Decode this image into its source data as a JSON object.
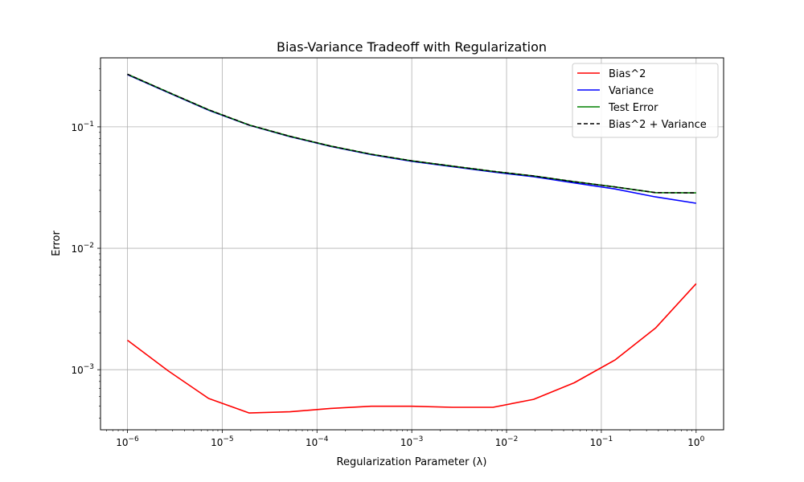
{
  "chart_data": {
    "type": "line",
    "title": "Bias-Variance Tradeoff with Regularization",
    "xlabel": "Regularization Parameter (λ)",
    "ylabel": "Error",
    "xscale": "log",
    "yscale": "log",
    "xlim": [
      5.2e-07,
      1.95
    ],
    "ylim": [
      0.00032,
      0.37
    ],
    "grid": true,
    "legend_position": "top-right",
    "x": [
      1e-06,
      2.68e-06,
      7.2e-06,
      1.93e-05,
      5.18e-05,
      0.000139,
      0.000373,
      0.001,
      0.00268,
      0.0072,
      0.0193,
      0.0518,
      0.139,
      0.373,
      1
    ],
    "series": [
      {
        "name": "Bias^2",
        "color": "#ff0000",
        "dash": "solid",
        "values": [
          0.00175,
          0.00098,
          0.00058,
          0.00044,
          0.00045,
          0.00048,
          0.0005,
          0.0005,
          0.00049,
          0.00049,
          0.00057,
          0.00078,
          0.0012,
          0.0022,
          0.0051
        ]
      },
      {
        "name": "Variance",
        "color": "#0000ff",
        "dash": "solid",
        "values": [
          0.269,
          0.192,
          0.137,
          0.103,
          0.083,
          0.069,
          0.059,
          0.052,
          0.047,
          0.0425,
          0.0388,
          0.0345,
          0.0308,
          0.0265,
          0.0235
        ]
      },
      {
        "name": "Test Error",
        "color": "#008000",
        "dash": "solid",
        "values": [
          0.271,
          0.193,
          0.138,
          0.1035,
          0.0835,
          0.0695,
          0.0595,
          0.0525,
          0.0475,
          0.043,
          0.0394,
          0.0353,
          0.032,
          0.0287,
          0.0286
        ]
      },
      {
        "name": "Bias^2 + Variance",
        "color": "#000000",
        "dash": "dashed",
        "values": [
          0.271,
          0.193,
          0.138,
          0.1035,
          0.0835,
          0.0695,
          0.0595,
          0.0525,
          0.0475,
          0.043,
          0.0394,
          0.0353,
          0.032,
          0.0287,
          0.0286
        ]
      }
    ],
    "x_ticks": [
      {
        "base": "10",
        "exp": "−6",
        "value": 1e-06
      },
      {
        "base": "10",
        "exp": "−5",
        "value": 1e-05
      },
      {
        "base": "10",
        "exp": "−4",
        "value": 0.0001
      },
      {
        "base": "10",
        "exp": "−3",
        "value": 0.001
      },
      {
        "base": "10",
        "exp": "−2",
        "value": 0.01
      },
      {
        "base": "10",
        "exp": "−1",
        "value": 0.1
      },
      {
        "base": "10",
        "exp": "0",
        "value": 1
      }
    ],
    "y_ticks": [
      {
        "base": "10",
        "exp": "−3",
        "value": 0.001
      },
      {
        "base": "10",
        "exp": "−2",
        "value": 0.01
      },
      {
        "base": "10",
        "exp": "−1",
        "value": 0.1
      }
    ]
  }
}
